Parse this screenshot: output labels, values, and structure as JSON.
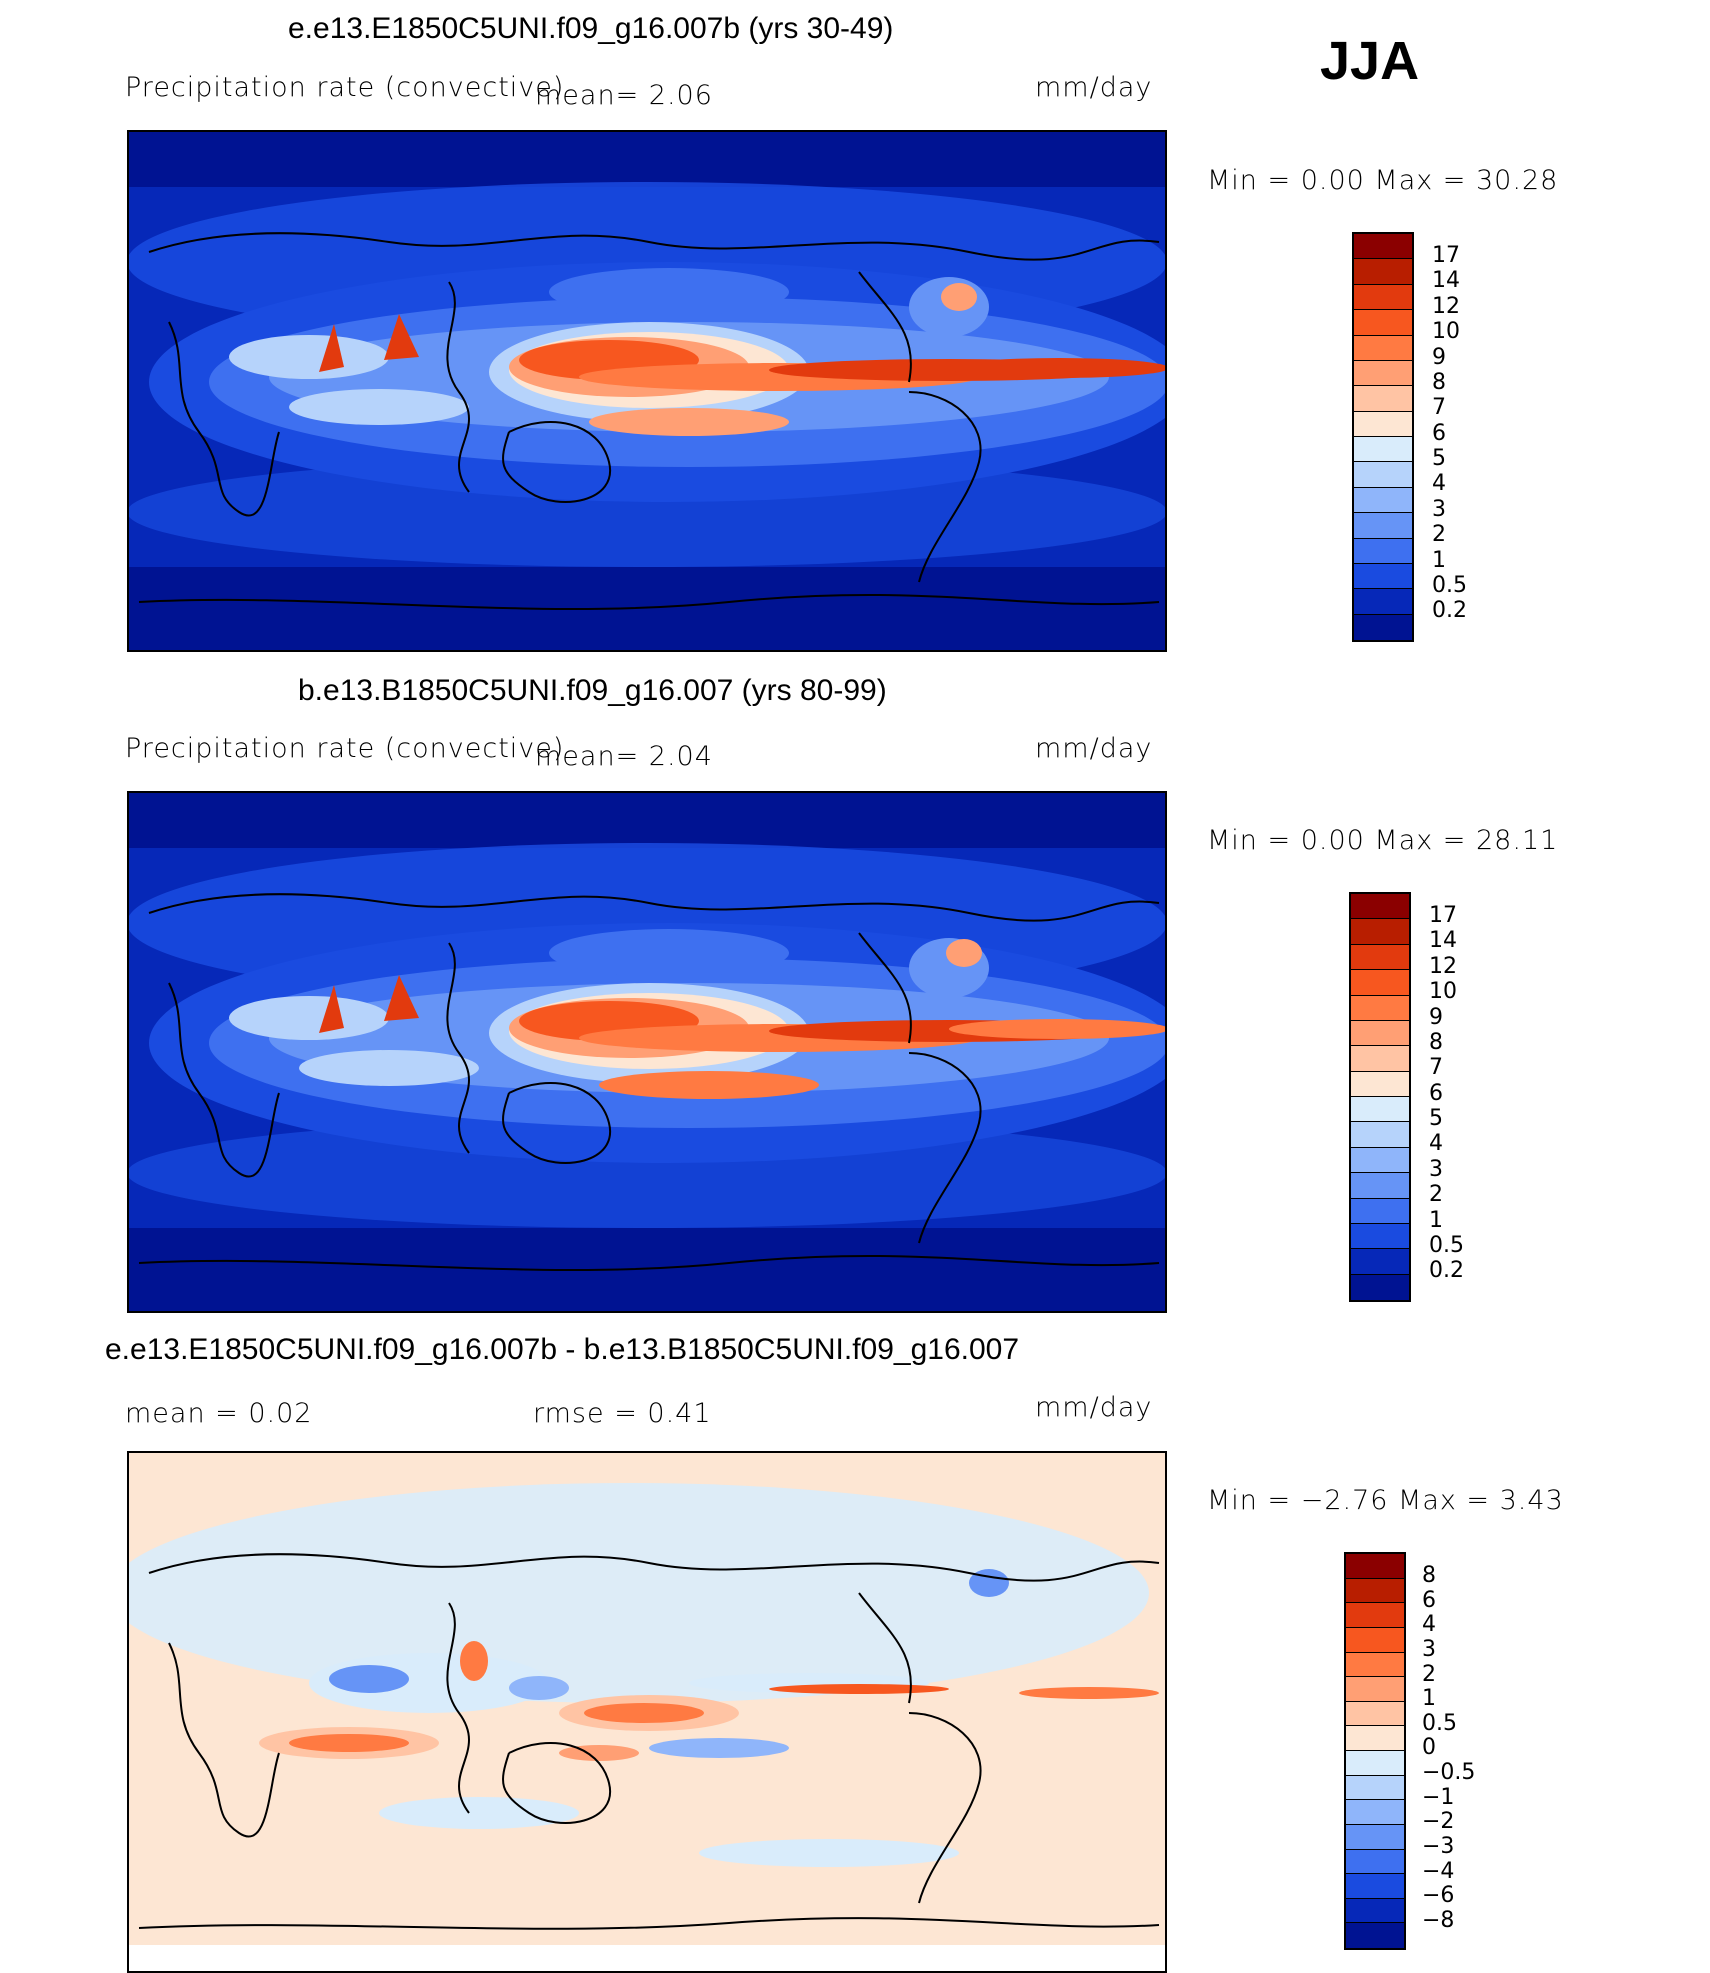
{
  "season": "JJA",
  "panels": [
    {
      "title": "e.e13.E1850C5UNI.f09_g16.007b (yrs 30-49)",
      "left_text": "Precipitation rate (convective)",
      "mid_text": "mean=    2.06",
      "units": "mm/day",
      "minmax": "Min =     0.00 Max =   30.28",
      "colorbar_labels": [
        "17",
        "14",
        "12",
        "10",
        "9",
        "8",
        "7",
        "6",
        "5",
        "4",
        "3",
        "2",
        "1",
        "0.5",
        "0.2"
      ],
      "colorbar_colors": [
        "#8b0000",
        "#b81e00",
        "#e23a0e",
        "#f7571f",
        "#ff7a42",
        "#ff9f74",
        "#ffc4a4",
        "#fde6d3",
        "#d9ecfb",
        "#b6d3fb",
        "#8fb5fa",
        "#6694f6",
        "#3e70f0",
        "#1a4be0",
        "#0628b8",
        "#001392"
      ]
    },
    {
      "title": "b.e13.B1850C5UNI.f09_g16.007 (yrs 80-99)",
      "left_text": "Precipitation rate (convective)",
      "mid_text": "mean=    2.04",
      "units": "mm/day",
      "minmax": "Min =     0.00 Max =   28.11",
      "colorbar_labels": [
        "17",
        "14",
        "12",
        "10",
        "9",
        "8",
        "7",
        "6",
        "5",
        "4",
        "3",
        "2",
        "1",
        "0.5",
        "0.2"
      ],
      "colorbar_colors": [
        "#8b0000",
        "#b81e00",
        "#e23a0e",
        "#f7571f",
        "#ff7a42",
        "#ff9f74",
        "#ffc4a4",
        "#fde6d3",
        "#d9ecfb",
        "#b6d3fb",
        "#8fb5fa",
        "#6694f6",
        "#3e70f0",
        "#1a4be0",
        "#0628b8",
        "#001392"
      ]
    },
    {
      "title": "e.e13.E1850C5UNI.f09_g16.007b - b.e13.B1850C5UNI.f09_g16.007",
      "left_text": "mean =    0.02",
      "mid_text": "rmse =    0.41",
      "units": "mm/day",
      "minmax": "Min =   −2.76 Max =    3.43",
      "colorbar_labels": [
        "8",
        "6",
        "4",
        "3",
        "2",
        "1",
        "0.5",
        "0",
        "−0.5",
        "−1",
        "−2",
        "−3",
        "−4",
        "−6",
        "−8"
      ],
      "colorbar_colors": [
        "#8b0000",
        "#b81e00",
        "#e23a0e",
        "#f7571f",
        "#ff7a42",
        "#ff9f74",
        "#ffc4a4",
        "#fde6d3",
        "#d9ecfb",
        "#b6d3fb",
        "#8fb5fa",
        "#6694f6",
        "#3e70f0",
        "#1a4be0",
        "#0628b8",
        "#001392"
      ]
    }
  ],
  "palette": {
    "background_dry": "#001392",
    "diff_background": "#fde6d3",
    "coastline": "#000000"
  }
}
